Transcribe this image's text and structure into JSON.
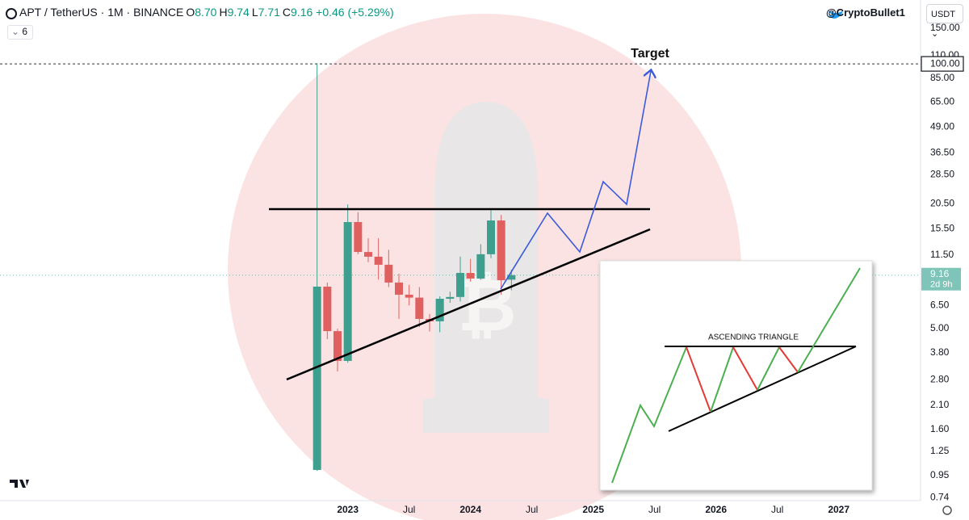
{
  "toolbar": {
    "symbol": "APT / TetherUS · 1M · BINANCE",
    "ohlc": [
      {
        "key": "O",
        "value": "8.70"
      },
      {
        "key": "H",
        "value": "9.74"
      },
      {
        "key": "L",
        "value": "7.71"
      },
      {
        "key": "C",
        "value": "9.16"
      }
    ],
    "change": "+0.46 (+5.29%)",
    "indicators": 6,
    "handle": "@CryptoBullet1",
    "currency": "USDT"
  },
  "chart_data": {
    "type": "candlestick",
    "log_scale": true,
    "grid": false,
    "up_color": "#3f9f8f",
    "down_color": "#e06060",
    "x": [
      "2022-10",
      "2022-11",
      "2022-12",
      "2023-01",
      "2023-02",
      "2023-03",
      "2023-04",
      "2023-05",
      "2023-06",
      "2023-07",
      "2023-08",
      "2023-09",
      "2023-10",
      "2023-11",
      "2023-12",
      "2024-01",
      "2024-02",
      "2024-03",
      "2024-04",
      "2024-05"
    ],
    "open": [
      1.01,
      8.04,
      4.86,
      3.47,
      16.7,
      11.9,
      11.28,
      10.3,
      8.42,
      7.34,
      7.1,
      5.58,
      5.43,
      7.01,
      7.15,
      9.39,
      8.81,
      11.6,
      17.0,
      8.7
    ],
    "high": [
      101,
      8.42,
      5.0,
      20.4,
      18.65,
      13.9,
      13.9,
      12.2,
      9.3,
      8.2,
      8.0,
      5.9,
      7.2,
      7.6,
      11.3,
      11.0,
      13.0,
      19.5,
      18.1,
      9.74
    ],
    "low": [
      1.0,
      4.44,
      3.08,
      3.4,
      11.6,
      10.6,
      8.7,
      8.0,
      5.58,
      6.5,
      5.09,
      4.84,
      4.8,
      6.7,
      6.8,
      8.5,
      8.7,
      11.1,
      7.34,
      7.71
    ],
    "close": [
      8.04,
      4.86,
      3.47,
      16.7,
      11.9,
      11.28,
      10.3,
      8.42,
      7.34,
      7.1,
      5.58,
      5.43,
      7.01,
      7.15,
      9.39,
      8.81,
      11.6,
      17.0,
      8.65,
      9.16
    ],
    "xlim": [
      "2020-03",
      "2027-09"
    ],
    "xticks": [
      {
        "value": "2023-01",
        "label": "2023"
      },
      {
        "value": "2023-07",
        "label": "Jul"
      },
      {
        "value": "2024-01",
        "label": "2024"
      },
      {
        "value": "2024-07",
        "label": "Jul"
      },
      {
        "value": "2025-01",
        "label": "2025"
      },
      {
        "value": "2025-07",
        "label": "Jul"
      },
      {
        "value": "2026-01",
        "label": "2026"
      },
      {
        "value": "2026-07",
        "label": "Jul"
      },
      {
        "value": "2027-01",
        "label": "2027"
      }
    ],
    "ylim": [
      0.714,
      206
    ],
    "yticks": [
      {
        "value": 150,
        "label": "150.00"
      },
      {
        "value": 110,
        "label": "110.00"
      },
      {
        "value": 85,
        "label": "85.00"
      },
      {
        "value": 65,
        "label": "65.00"
      },
      {
        "value": 49,
        "label": "49.00"
      },
      {
        "value": 36.5,
        "label": "36.50"
      },
      {
        "value": 28.5,
        "label": "28.50"
      },
      {
        "value": 20.5,
        "label": "20.50"
      },
      {
        "value": 15.5,
        "label": "15.50"
      },
      {
        "value": 11.5,
        "label": "11.50"
      },
      {
        "value": 6.5,
        "label": "6.50"
      },
      {
        "value": 5,
        "label": "5.00"
      },
      {
        "value": 3.8,
        "label": "3.80"
      },
      {
        "value": 2.8,
        "label": "2.80"
      },
      {
        "value": 2.1,
        "label": "2.10"
      },
      {
        "value": 1.6,
        "label": "1.60"
      },
      {
        "value": 1.25,
        "label": "1.25"
      },
      {
        "value": 0.95,
        "label": "0.95"
      },
      {
        "value": 0.74,
        "label": "0.74"
      }
    ],
    "target": {
      "value": 100,
      "label": "100.00",
      "text": "Target"
    },
    "last_price": {
      "value": 9.16,
      "label": "9.16",
      "countdown": "2d 9h"
    },
    "inset_title": "ASCENDING TRIANGLE"
  }
}
